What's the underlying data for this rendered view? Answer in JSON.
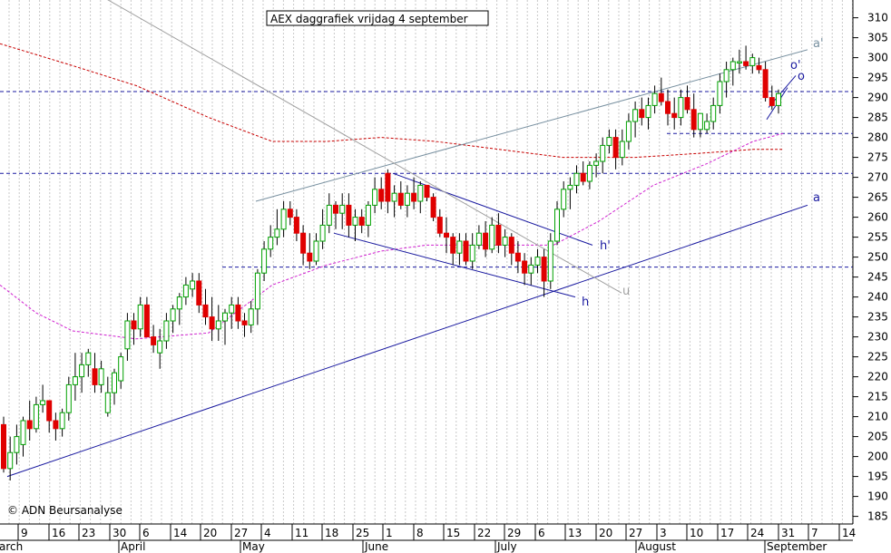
{
  "chart_data": {
    "type": "candlestick",
    "title": "AEX daggrafiek vrijdag 4 september",
    "credit": "© ADN Beursanalyse",
    "ylim": [
      183,
      313
    ],
    "y_ticks": [
      310,
      305,
      300,
      295,
      290,
      285,
      280,
      275,
      270,
      265,
      260,
      255,
      250,
      245,
      240,
      235,
      230,
      225,
      220,
      215,
      210,
      205,
      200,
      195,
      190,
      185
    ],
    "x_day_ticks": [
      "9",
      "16",
      "23",
      "30",
      "6",
      "14",
      "20",
      "27",
      "4",
      "11",
      "18",
      "25",
      "1",
      "8",
      "15",
      "22",
      "29",
      "6",
      "13",
      "20",
      "27",
      "3",
      "10",
      "17",
      "24",
      "31",
      "7",
      "14"
    ],
    "months": [
      "arch",
      "April",
      "May",
      "June",
      "July",
      "August",
      "September"
    ],
    "grid": "vertical dotted",
    "colors": {
      "up": "#00a000",
      "down": "#e00000",
      "blue": "#1a1aa0",
      "red_ma": "#c80000",
      "magenta_ma": "#d020d0",
      "gray": "#a0a0a0"
    },
    "ohlc": [
      [
        208,
        210,
        196,
        197
      ],
      [
        197,
        205,
        194,
        201
      ],
      [
        201,
        208,
        198,
        205
      ],
      [
        203,
        210,
        200,
        209
      ],
      [
        209,
        214,
        204,
        207
      ],
      [
        207,
        215,
        206,
        213
      ],
      [
        213,
        218,
        211,
        214
      ],
      [
        214,
        214,
        206,
        209
      ],
      [
        209,
        211,
        204,
        207
      ],
      [
        207,
        212,
        205,
        211
      ],
      [
        211,
        220,
        209,
        218
      ],
      [
        218,
        226,
        214,
        220
      ],
      [
        220,
        226,
        216,
        223
      ],
      [
        223,
        227,
        220,
        226
      ],
      [
        222,
        226,
        216,
        218
      ],
      [
        218,
        224,
        216,
        222
      ],
      [
        211,
        220,
        210,
        216
      ],
      [
        216,
        222,
        213,
        221
      ],
      [
        219,
        226,
        217,
        225
      ],
      [
        227,
        236,
        224,
        234
      ],
      [
        234,
        236,
        228,
        232
      ],
      [
        232,
        240,
        230,
        238
      ],
      [
        238,
        240,
        230,
        230
      ],
      [
        230,
        233,
        226,
        228
      ],
      [
        226,
        232,
        222,
        229
      ],
      [
        229,
        236,
        227,
        234
      ],
      [
        234,
        238,
        231,
        237
      ],
      [
        237,
        241,
        233,
        240
      ],
      [
        240,
        245,
        238,
        243
      ],
      [
        242,
        246,
        240,
        244
      ],
      [
        244,
        246,
        236,
        238
      ],
      [
        238,
        242,
        233,
        235
      ],
      [
        235,
        240,
        229,
        232
      ],
      [
        232,
        238,
        229,
        234
      ],
      [
        234,
        237,
        228,
        236
      ],
      [
        236,
        240,
        232,
        238
      ],
      [
        238,
        240,
        232,
        234
      ],
      [
        234,
        236,
        230,
        233
      ],
      [
        233,
        239,
        231,
        237
      ],
      [
        237,
        247,
        233,
        246
      ],
      [
        246,
        254,
        244,
        252
      ],
      [
        252,
        258,
        250,
        255
      ],
      [
        255,
        262,
        253,
        257
      ],
      [
        257,
        264,
        255,
        262
      ],
      [
        262,
        264,
        258,
        260
      ],
      [
        260,
        262,
        254,
        256
      ],
      [
        256,
        258,
        248,
        251
      ],
      [
        251,
        256,
        247,
        249
      ],
      [
        249,
        256,
        248,
        254
      ],
      [
        254,
        262,
        252,
        258
      ],
      [
        258,
        266,
        256,
        263
      ],
      [
        263,
        264,
        257,
        261
      ],
      [
        261,
        266,
        257,
        263
      ],
      [
        263,
        266,
        255,
        258
      ],
      [
        258,
        262,
        254,
        260
      ],
      [
        260,
        262,
        256,
        258
      ],
      [
        258,
        264,
        255,
        263
      ],
      [
        263,
        270,
        261,
        267
      ],
      [
        267,
        270,
        262,
        264
      ],
      [
        271,
        272,
        261,
        264
      ],
      [
        264,
        268,
        260,
        266
      ],
      [
        266,
        269,
        262,
        263
      ],
      [
        263,
        268,
        260,
        266
      ],
      [
        266,
        270,
        262,
        264
      ],
      [
        264,
        269,
        261,
        268
      ],
      [
        268,
        268,
        264,
        265
      ],
      [
        265,
        266,
        259,
        260
      ],
      [
        260,
        262,
        255,
        256
      ],
      [
        256,
        260,
        251,
        255
      ],
      [
        255,
        256,
        248,
        251
      ],
      [
        251,
        256,
        248,
        254
      ],
      [
        254,
        256,
        248,
        249
      ],
      [
        249,
        256,
        247,
        253
      ],
      [
        253,
        258,
        252,
        256
      ],
      [
        256,
        259,
        250,
        252
      ],
      [
        252,
        260,
        251,
        258
      ],
      [
        258,
        261,
        251,
        253
      ],
      [
        253,
        257,
        250,
        255
      ],
      [
        255,
        256,
        248,
        251
      ],
      [
        251,
        254,
        246,
        249
      ],
      [
        249,
        251,
        243,
        246
      ],
      [
        246,
        250,
        243,
        248
      ],
      [
        248,
        252,
        246,
        250
      ],
      [
        250,
        252,
        240,
        244
      ],
      [
        244,
        256,
        242,
        254
      ],
      [
        254,
        264,
        253,
        262
      ],
      [
        262,
        269,
        260,
        267
      ],
      [
        267,
        270,
        262,
        268
      ],
      [
        268,
        273,
        266,
        271
      ],
      [
        271,
        274,
        268,
        269
      ],
      [
        269,
        274,
        267,
        273
      ],
      [
        273,
        276,
        270,
        274
      ],
      [
        274,
        280,
        271,
        278
      ],
      [
        278,
        282,
        276,
        280
      ],
      [
        280,
        282,
        272,
        275
      ],
      [
        275,
        282,
        273,
        279
      ],
      [
        279,
        286,
        277,
        284
      ],
      [
        284,
        289,
        280,
        287
      ],
      [
        287,
        290,
        283,
        285
      ],
      [
        285,
        290,
        282,
        288
      ],
      [
        288,
        293,
        286,
        291
      ],
      [
        291,
        295,
        288,
        289
      ],
      [
        289,
        292,
        283,
        286
      ],
      [
        286,
        290,
        282,
        285
      ],
      [
        285,
        292,
        283,
        290
      ],
      [
        290,
        293,
        286,
        287
      ],
      [
        287,
        291,
        280,
        282
      ],
      [
        282,
        286,
        280,
        286
      ],
      [
        282,
        286,
        281,
        284
      ],
      [
        284,
        290,
        282,
        288
      ],
      [
        288,
        296,
        286,
        294
      ],
      [
        294,
        299,
        290,
        297
      ],
      [
        297,
        300,
        293,
        299
      ],
      [
        299,
        302,
        296,
        299
      ],
      [
        299,
        303,
        297,
        298
      ],
      [
        298,
        301,
        296,
        300
      ],
      [
        298,
        300,
        296,
        297
      ],
      [
        297,
        299,
        289,
        290
      ],
      [
        290,
        293,
        287,
        288
      ],
      [
        288,
        292,
        286,
        291
      ]
    ],
    "ma_long": [
      [
        0,
        303.5
      ],
      [
        80,
        298
      ],
      [
        150,
        293
      ],
      [
        230,
        285
      ],
      [
        300,
        279
      ],
      [
        360,
        279
      ],
      [
        420,
        280
      ],
      [
        480,
        279
      ],
      [
        550,
        277
      ],
      [
        620,
        275
      ],
      [
        700,
        275
      ],
      [
        770,
        276
      ],
      [
        830,
        277
      ],
      [
        863,
        277
      ]
    ],
    "ma_short": [
      [
        0,
        243
      ],
      [
        40,
        236
      ],
      [
        80,
        231.5
      ],
      [
        150,
        229.5
      ],
      [
        230,
        231
      ],
      [
        300,
        243
      ],
      [
        360,
        248
      ],
      [
        420,
        251.5
      ],
      [
        470,
        253
      ],
      [
        540,
        253
      ],
      [
        610,
        253
      ],
      [
        660,
        259
      ],
      [
        720,
        268
      ],
      [
        780,
        273.5
      ],
      [
        830,
        279
      ],
      [
        863,
        281
      ]
    ],
    "lines": {
      "a": {
        "label": "a",
        "from": [
          8,
          195
        ],
        "to": [
          890,
          263
        ]
      },
      "a_prime": {
        "label": "a'",
        "from": [
          282,
          264
        ],
        "to": [
          890,
          302
        ]
      },
      "h": {
        "label": "h",
        "from": [
          368,
          256
        ],
        "to": [
          634,
          240
        ]
      },
      "h_prime": {
        "label": "h'",
        "from": [
          433,
          271
        ],
        "to": [
          653,
          253
        ]
      },
      "u": {
        "label": "u",
        "from": [
          115,
          315
        ],
        "to": [
          685,
          241
        ]
      },
      "o": {
        "label": "o",
        "from": [
          847,
          287.5
        ],
        "to": [
          877,
          295.5
        ]
      },
      "o_prime": {
        "label": "o'",
        "from": [
          845,
          284.5
        ],
        "to": [
          868,
          292.5
        ]
      }
    },
    "h_levels": [
      291.5,
      271,
      247.5,
      281
    ],
    "h_level_spans": [
      [
        0,
        940
      ],
      [
        0,
        940
      ],
      [
        245,
        940
      ],
      [
        735,
        940
      ]
    ]
  }
}
